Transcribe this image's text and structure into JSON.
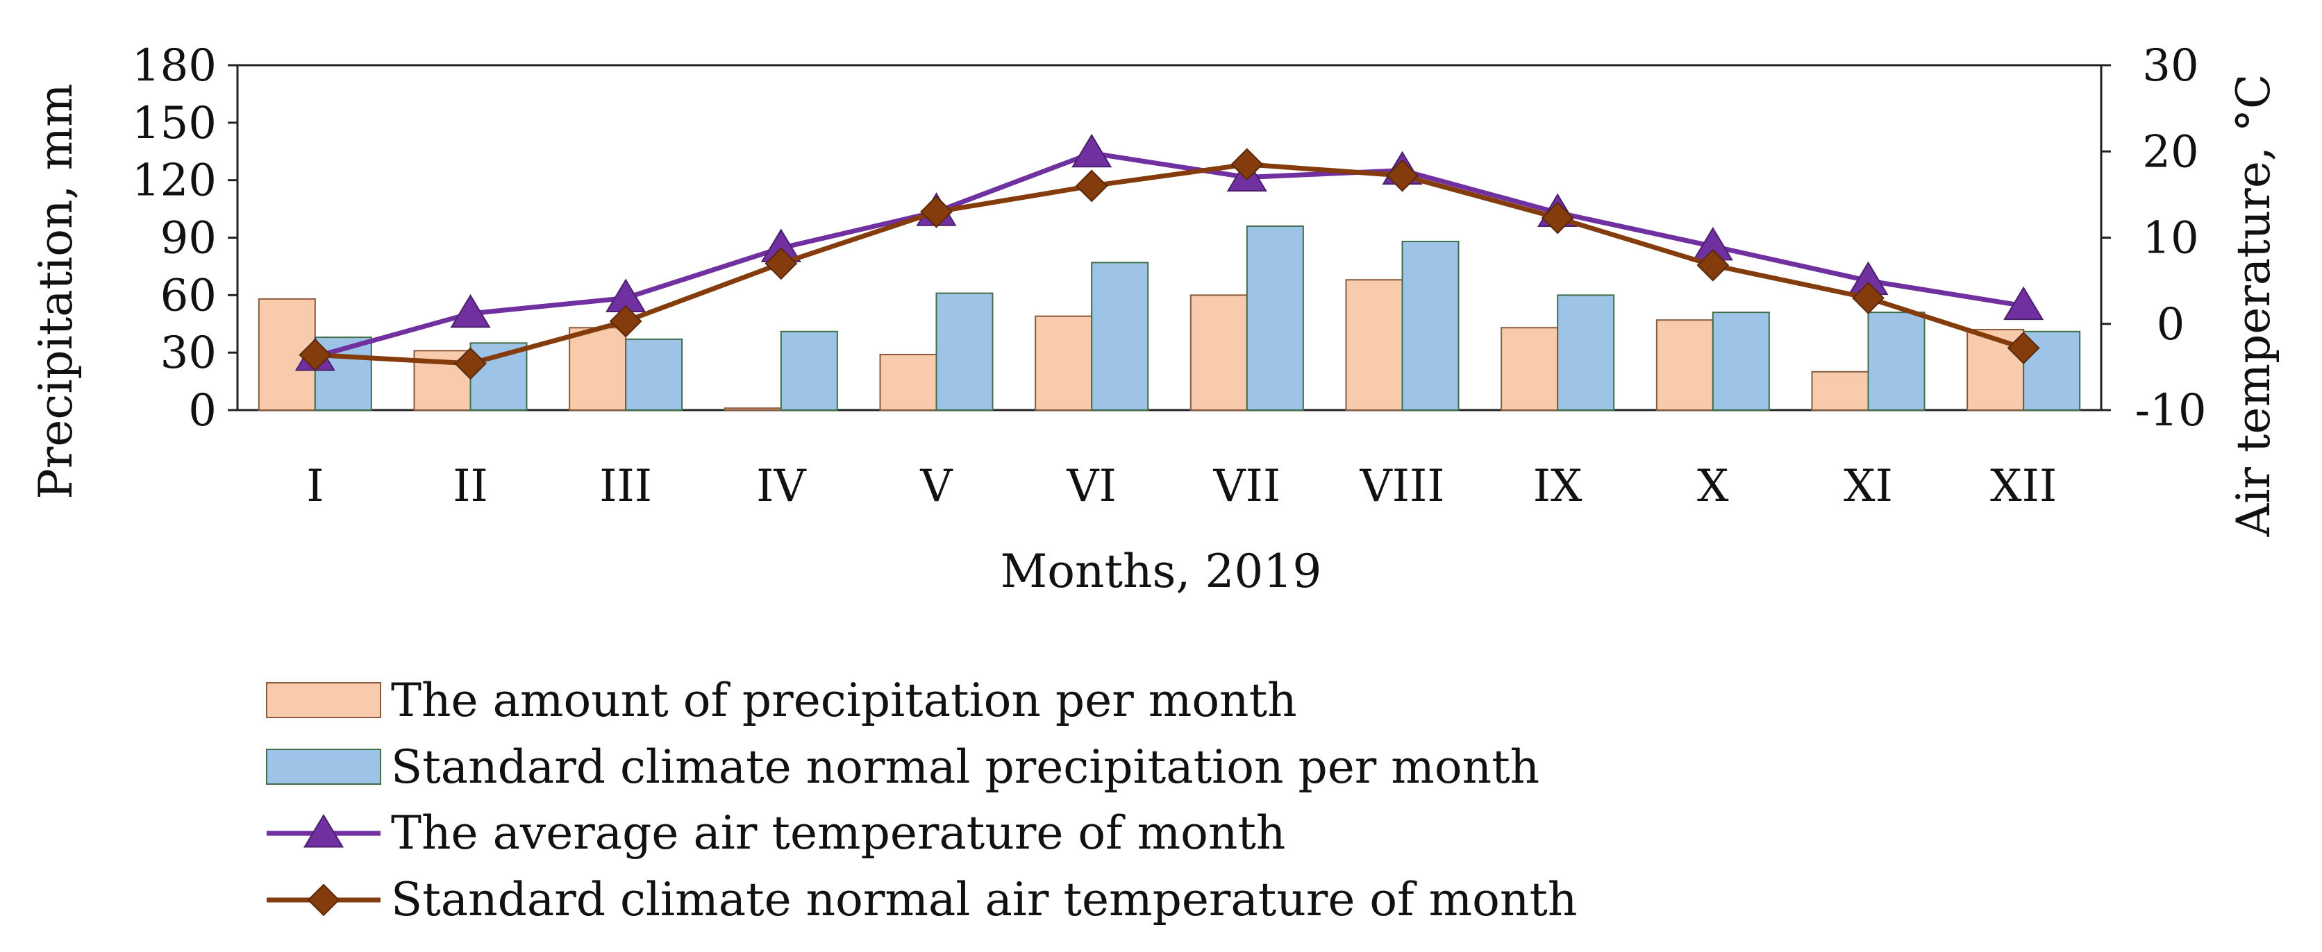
{
  "chart_data": {
    "type": "bar",
    "xlabel": "Months, 2019",
    "ylabel": "Precipitation, mm",
    "y2label": "Air temperature, °C",
    "ylim": [
      0,
      180
    ],
    "y2lim": [
      -10,
      30
    ],
    "yticks": [
      "0",
      "30",
      "60",
      "90",
      "120",
      "150",
      "180"
    ],
    "y2ticks": [
      "-10",
      "0",
      "10",
      "20",
      "30"
    ],
    "categories": [
      "I",
      "II",
      "III",
      "IV",
      "V",
      "VI",
      "VII",
      "VIII",
      "IX",
      "X",
      "XI",
      "XII"
    ],
    "series": [
      {
        "name": "The amount of precipitation per month",
        "kind": "bar",
        "axis": "left",
        "color": "#f8cbad",
        "values": [
          58,
          31,
          43,
          1,
          29,
          49,
          60,
          68,
          43,
          47,
          20,
          42
        ]
      },
      {
        "name": "Standard climate normal precipitation per month",
        "kind": "bar",
        "axis": "left",
        "color": "#9dc3e6",
        "values": [
          38,
          35,
          37,
          41,
          61,
          77,
          96,
          88,
          60,
          51,
          51,
          41
        ]
      },
      {
        "name": "The average air temperature of month",
        "kind": "line",
        "axis": "right",
        "marker": "triangle",
        "color": "#7030a0",
        "values": [
          -3.8,
          1.2,
          3.0,
          8.8,
          13.0,
          19.8,
          17.0,
          17.8,
          12.9,
          9.0,
          5.0,
          2.1
        ]
      },
      {
        "name": "Standard climate normal air temperature of month",
        "kind": "line",
        "axis": "right",
        "marker": "diamond",
        "color": "#843c0c",
        "values": [
          -3.6,
          -4.6,
          0.3,
          7.0,
          13.0,
          16.0,
          18.5,
          17.2,
          12.3,
          6.8,
          3.0,
          -2.8
        ]
      }
    ]
  }
}
